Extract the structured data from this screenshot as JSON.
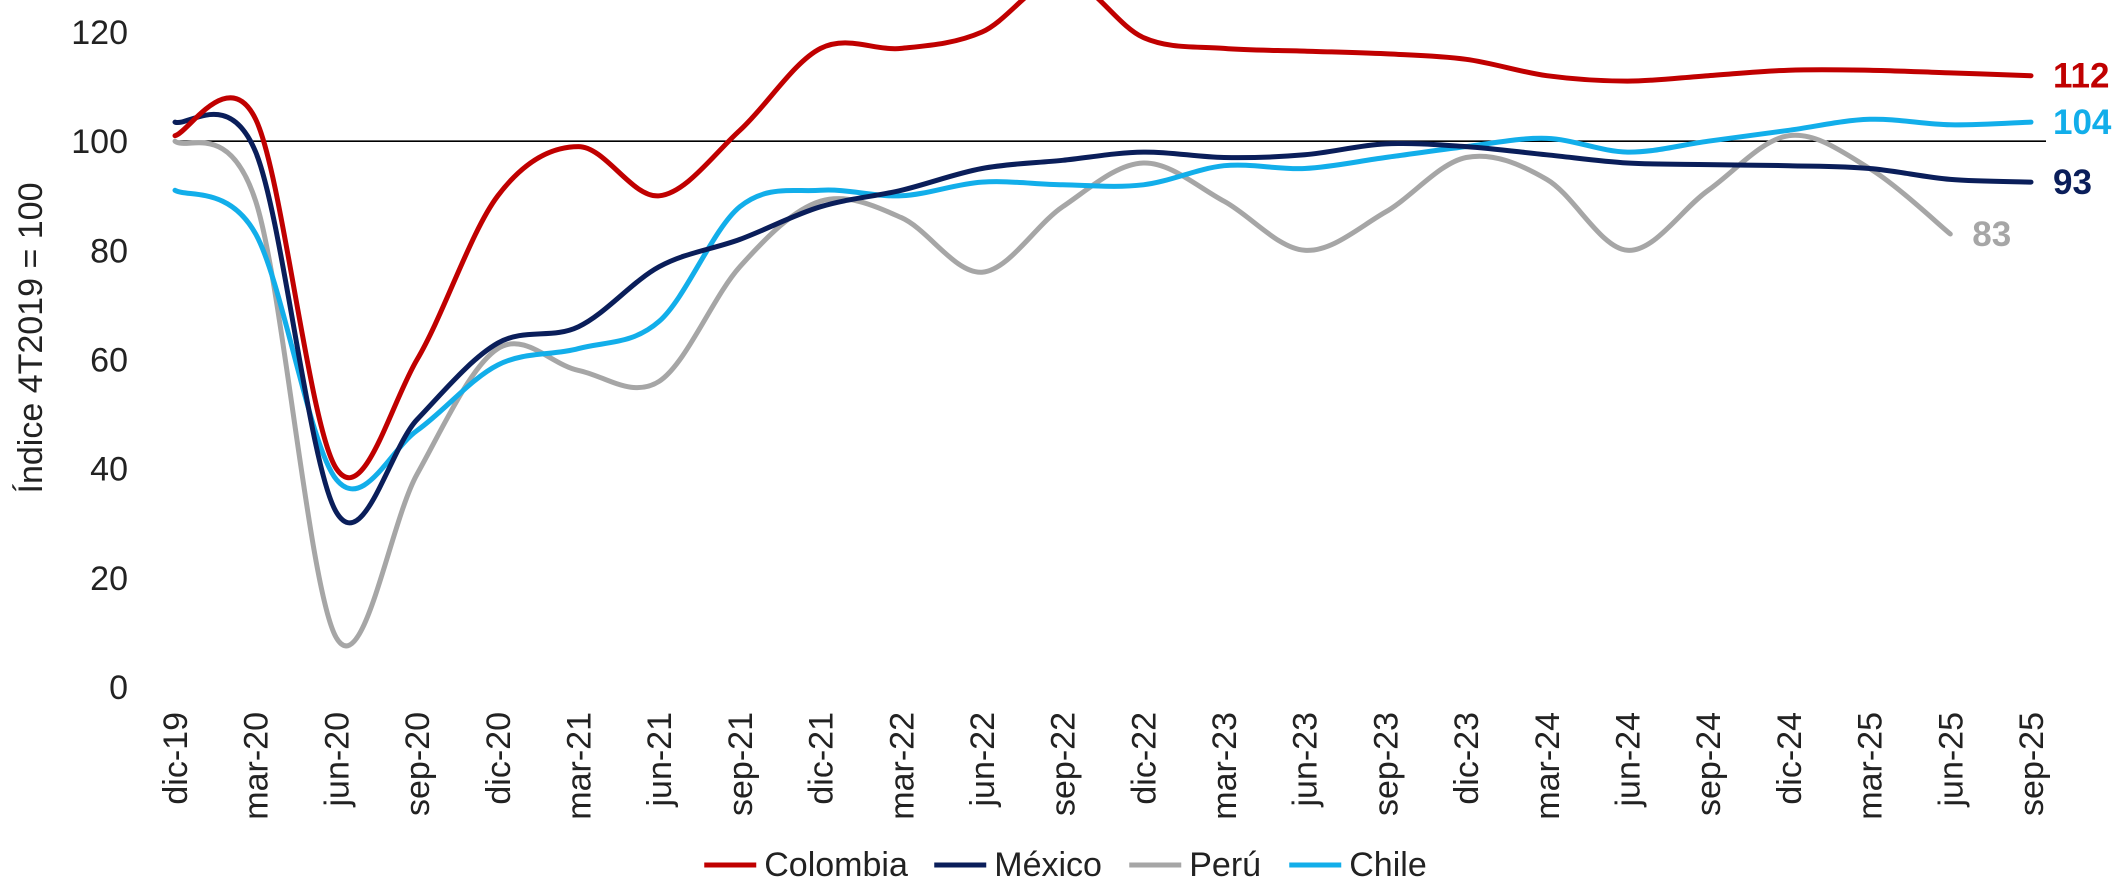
{
  "chart_data": {
    "type": "line",
    "title": "",
    "xlabel": "",
    "ylabel": "Índice 4T2019 = 100",
    "ylim": [
      0,
      120
    ],
    "yticks": [
      0,
      20,
      40,
      60,
      80,
      100,
      120
    ],
    "reference_line": 100,
    "grid": false,
    "legend_position": "bottom",
    "categories": [
      "dic-19",
      "mar-20",
      "jun-20",
      "sep-20",
      "dic-20",
      "mar-21",
      "jun-21",
      "sep-21",
      "dic-21",
      "mar-22",
      "jun-22",
      "sep-22",
      "dic-22",
      "mar-23",
      "jun-23",
      "sep-23",
      "dic-23",
      "mar-24",
      "jun-24",
      "sep-24",
      "dic-24",
      "mar-25",
      "jun-25",
      "sep-25"
    ],
    "series": [
      {
        "name": "Colombia",
        "color": "#C00000",
        "values": [
          101,
          104,
          40,
          60,
          90,
          99,
          90,
          102,
          117,
          117,
          120,
          130,
          119,
          117,
          116.5,
          116,
          115,
          112,
          111,
          112,
          113,
          113,
          112.5,
          112
        ],
        "end_label": "112"
      },
      {
        "name": "México",
        "color": "#0A1E5A",
        "values": [
          103.5,
          98,
          32,
          49,
          63,
          66,
          77,
          82,
          88,
          91,
          95,
          96.5,
          98,
          97,
          97.5,
          99.5,
          99,
          97.5,
          96,
          95.7,
          95.5,
          95,
          93,
          92.5
        ],
        "end_label": "93"
      },
      {
        "name": "Perú",
        "color": "#A6A6A6",
        "values": [
          100,
          89,
          9,
          39,
          62,
          58,
          56,
          77,
          89,
          86,
          76,
          88,
          96,
          89,
          80,
          87,
          97,
          93,
          80,
          91,
          101,
          95,
          83,
          null
        ],
        "end_label": "83"
      },
      {
        "name": "Chile",
        "color": "#12AEEA",
        "values": [
          91,
          83,
          38,
          47,
          59,
          62,
          67,
          88,
          91,
          90,
          92.5,
          92,
          92,
          95.5,
          95,
          97,
          99,
          100.5,
          98,
          100,
          102,
          104,
          103,
          103.5
        ],
        "end_label": "104"
      }
    ]
  }
}
